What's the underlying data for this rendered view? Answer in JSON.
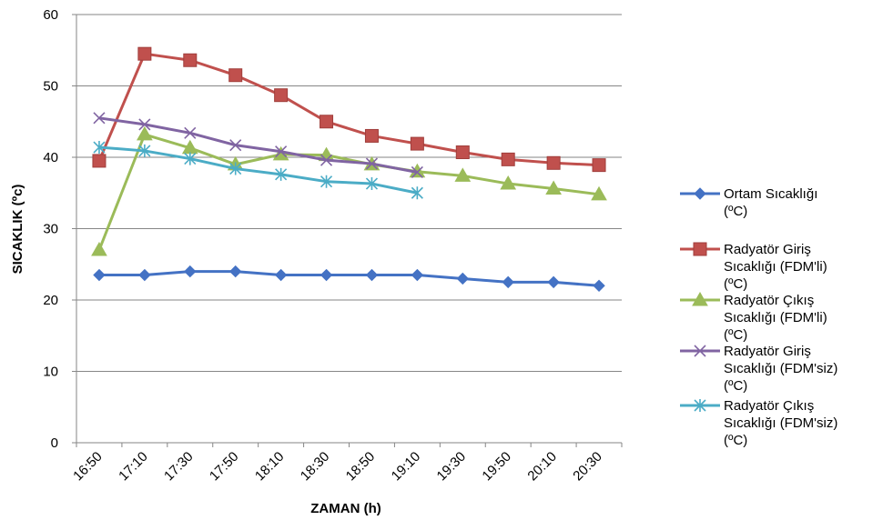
{
  "chart_data": {
    "type": "line",
    "xlabel": "ZAMAN (h)",
    "ylabel": "SICAKLIK (ºc)",
    "ylim": [
      0,
      60
    ],
    "yticks": [
      0,
      10,
      20,
      30,
      40,
      50,
      60
    ],
    "grid": "horizontal",
    "legend_position": "right",
    "categories": [
      "16:50",
      "17:10",
      "17:30",
      "17:50",
      "18:10",
      "18:30",
      "18:50",
      "19:10",
      "19:30",
      "19:50",
      "20:10",
      "20:30"
    ],
    "series": [
      {
        "name": "Ortam Sıcaklığı (ºC)",
        "legend_lines": [
          "Ortam Sıcaklığı",
          "(ºC)"
        ],
        "color": "#4472C4",
        "marker": "diamond",
        "values": [
          23.5,
          23.5,
          24,
          24,
          23.5,
          23.5,
          23.5,
          23.5,
          23,
          22.5,
          22.5,
          22
        ]
      },
      {
        "name": "Radyatör Giriş Sıcaklığı (FDM'li) (ºC)",
        "legend_lines": [
          "Radyatör Giriş",
          "Sıcaklığı (FDM'li)",
          "(ºC)"
        ],
        "color": "#C0504D",
        "marker": "square",
        "values": [
          39.5,
          54.5,
          53.6,
          51.5,
          48.7,
          45,
          43,
          41.9,
          40.7,
          39.7,
          39.2,
          38.9
        ]
      },
      {
        "name": "Radyatör Çıkış Sıcaklığı (FDM'li) (ºC)",
        "legend_lines": [
          "Radyatör Çıkış",
          "Sıcaklığı (FDM'li)",
          "(ºC)"
        ],
        "color": "#9BBB59",
        "marker": "triangle",
        "values": [
          27,
          43.2,
          41.3,
          39,
          40.4,
          40.3,
          39,
          38,
          37.4,
          36.3,
          35.6,
          34.8
        ]
      },
      {
        "name": "Radyatör Giriş Sıcaklığı (FDM'siz) (ºC)",
        "legend_lines": [
          "Radyatör Giriş",
          "Sıcaklığı (FDM'siz)",
          "(ºC)"
        ],
        "color": "#8064A2",
        "marker": "x",
        "values": [
          45.5,
          44.6,
          43.4,
          41.7,
          40.8,
          39.6,
          39.1,
          37.9,
          null,
          null,
          null,
          null
        ]
      },
      {
        "name": "Radyatör Çıkış Sıcaklığı (FDM'siz) (ºC)",
        "legend_lines": [
          "Radyatör Çıkış",
          "Sıcaklığı (FDM'siz)",
          "(ºC)"
        ],
        "color": "#4BACC6",
        "marker": "star",
        "values": [
          41.4,
          40.9,
          39.8,
          38.4,
          37.6,
          36.6,
          36.3,
          35,
          null,
          null,
          null,
          null
        ]
      }
    ]
  }
}
